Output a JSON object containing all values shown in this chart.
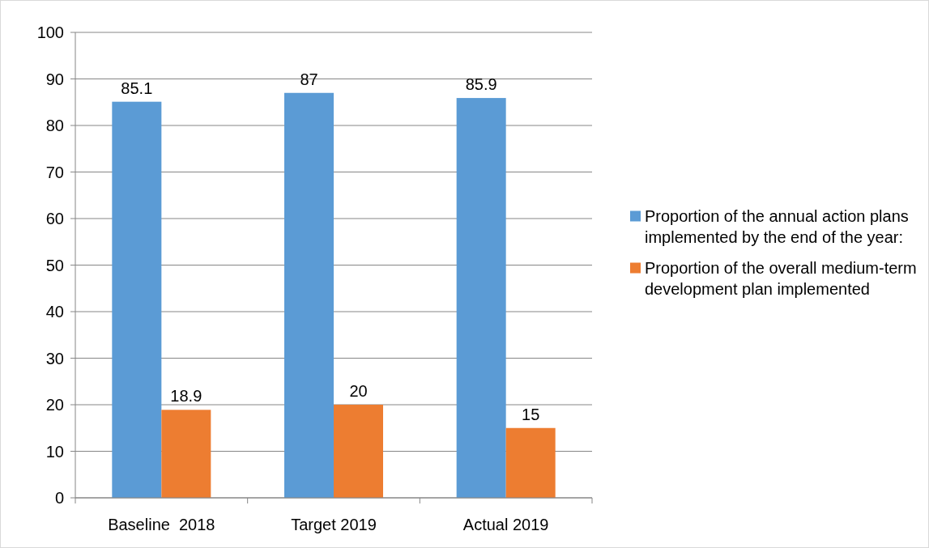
{
  "chart_data": {
    "type": "bar",
    "categories": [
      "Baseline  2018",
      "Target 2019",
      "Actual 2019"
    ],
    "series": [
      {
        "name": "Proportion of the annual action plans implemented by the end of the year:",
        "color": "#5b9bd5",
        "values": [
          85.1,
          87,
          85.9
        ]
      },
      {
        "name": "Proportion of the overall medium-term development plan implemented",
        "color": "#ed7d31",
        "values": [
          18.9,
          20,
          15
        ]
      }
    ],
    "ylim": [
      0,
      100
    ],
    "yticks": [
      0,
      10,
      20,
      30,
      40,
      50,
      60,
      70,
      80,
      90,
      100
    ],
    "grid": "y",
    "legend": "right",
    "data_labels": true
  }
}
